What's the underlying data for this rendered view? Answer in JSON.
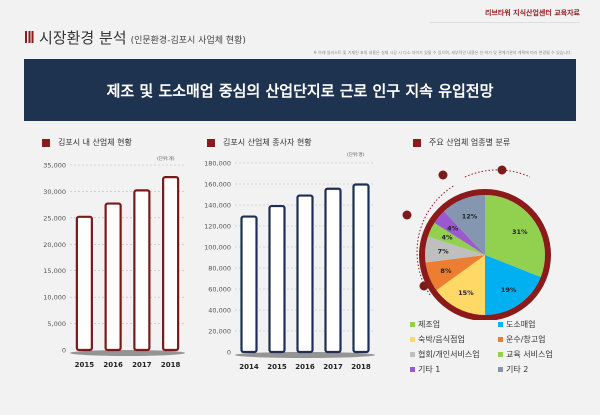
{
  "header": {
    "doc_label": "리브타워 지식산업센터 교육자료",
    "title": "시장환경 분석",
    "subtitle": "(인문환경-김포시 사업체 현황)",
    "note": "※ 아래 일러스트 및 기재된 표의 내용은 실제 시공 시 다소 차이가 있을 수 있으며, 세부적인 내용은 인·허가 및 관계기관의 계획에 따라 변경될 수 있습니다."
  },
  "banner": "제조 및 도소매업 중심의 산업단지로 근로 인구 지속 유입전망",
  "colors": {
    "accent": "#8b1a1a",
    "navy": "#1e3350"
  },
  "chart_data": [
    {
      "type": "bar",
      "title": "김포시 내 산업체 현황",
      "unit": "(단위:개)",
      "categories": [
        "2015",
        "2016",
        "2017",
        "2018"
      ],
      "values": [
        25200,
        27700,
        30200,
        32700
      ],
      "ylim": [
        0,
        35000
      ],
      "yticks": [
        "0",
        "5,000",
        "10,000",
        "15,000",
        "20,000",
        "25,000",
        "30,000",
        "35,000"
      ],
      "color": "#7a1a1a"
    },
    {
      "type": "bar",
      "title": "김포시 산업체 종사자 현황",
      "unit": "(단위:명)",
      "categories": [
        "2014",
        "2015",
        "2016",
        "2017",
        "2018"
      ],
      "values": [
        129000,
        139000,
        149000,
        155500,
        159500
      ],
      "ylim": [
        0,
        180000
      ],
      "yticks": [
        "0",
        "20,000",
        "40,000",
        "60,000",
        "80,000",
        "100,000",
        "120,000",
        "140,000",
        "160,000",
        "180,000"
      ],
      "color": "#1e2e55"
    },
    {
      "type": "pie",
      "title": "주요 산업체 업종별 분류",
      "slices": [
        {
          "label": "제조업",
          "value": 31,
          "text": "31%",
          "color": "#92d050"
        },
        {
          "label": "도소매업",
          "value": 19,
          "text": "19%",
          "color": "#00b0f0"
        },
        {
          "label": "숙박/음식점업",
          "value": 15,
          "text": "15%",
          "color": "#ffd966"
        },
        {
          "label": "운수/창고업",
          "value": 8,
          "text": "8%",
          "color": "#ed7d31"
        },
        {
          "label": "협회/개인서비스업",
          "value": 7,
          "text": "7%",
          "color": "#bfbfbf"
        },
        {
          "label": "교육 서비스업",
          "value": 4,
          "text": "4%",
          "color": "#92d050"
        },
        {
          "label": "기타 1",
          "value": 4,
          "text": "4%",
          "color": "#9b59d0"
        },
        {
          "label": "기타 2",
          "value": 12,
          "text": "12%",
          "color": "#8496b0"
        }
      ]
    }
  ]
}
